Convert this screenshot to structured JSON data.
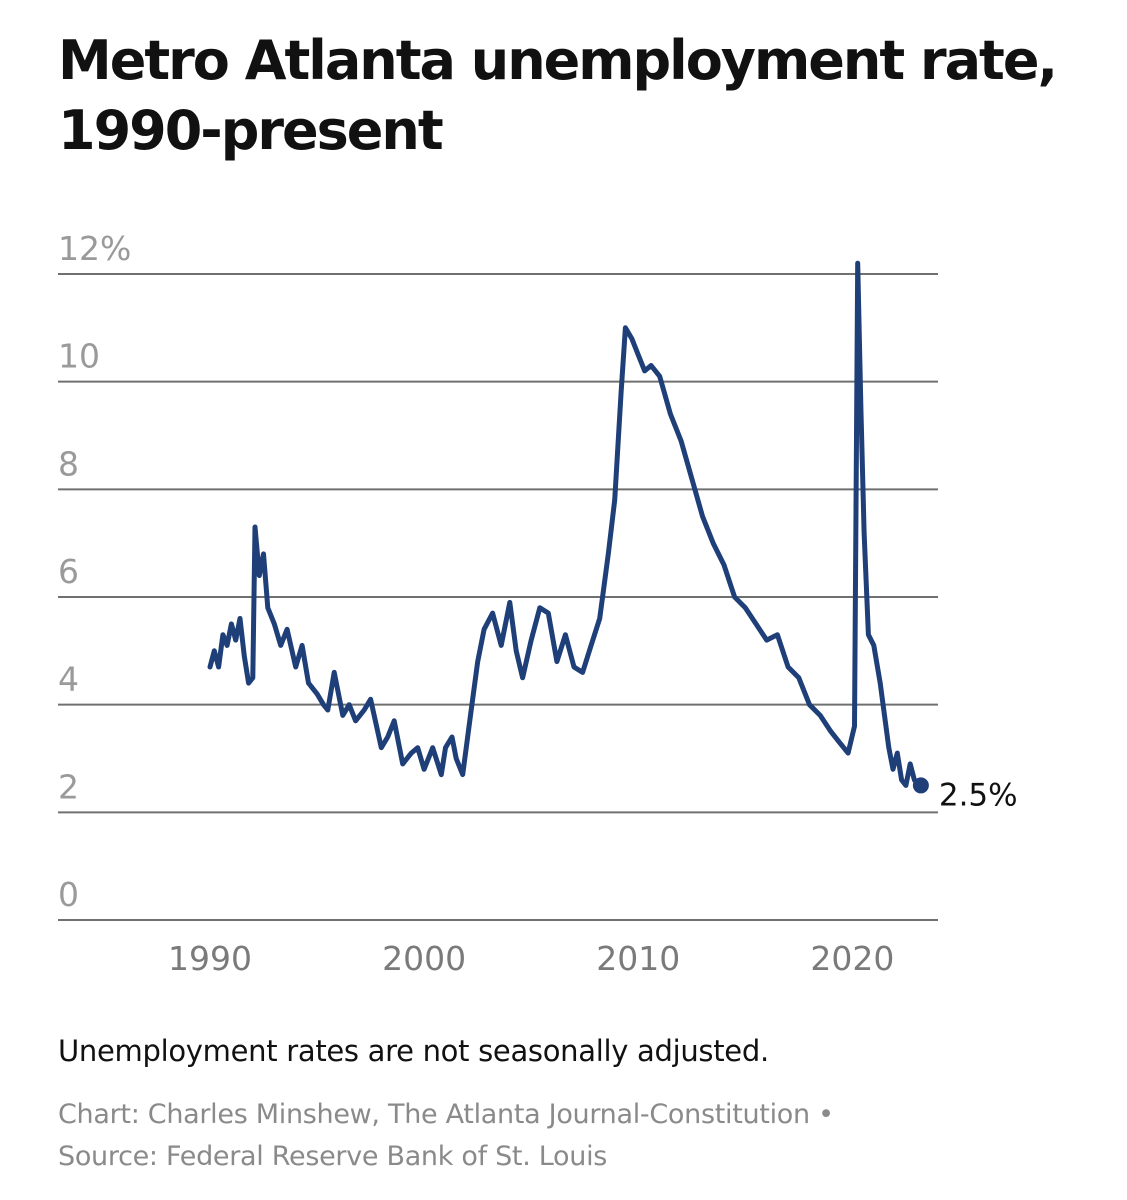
{
  "title": "Metro Atlanta unemployment rate, 1990-present",
  "note": "Unemployment rates are not seasonally adjusted.",
  "credit_line1": "Chart: Charles Minshew, The Atlanta Journal-Constitution •",
  "credit_line2": "Source: Federal Reserve Bank of St. Louis",
  "colors": {
    "line": "#1f3f78",
    "grid": "#707070",
    "ticks": "#9a9a9a"
  },
  "chart_data": {
    "type": "line",
    "title": "Metro Atlanta unemployment rate, 1990-present",
    "xlabel": "",
    "ylabel": "",
    "xlim": [
      1982.9,
      2024.0
    ],
    "ylim": [
      0,
      12
    ],
    "grid": true,
    "y_ticks": [
      {
        "value": 0,
        "label": "0"
      },
      {
        "value": 2,
        "label": "2"
      },
      {
        "value": 4,
        "label": "4"
      },
      {
        "value": 6,
        "label": "6"
      },
      {
        "value": 8,
        "label": "8"
      },
      {
        "value": 10,
        "label": "10"
      },
      {
        "value": 12,
        "label": "12%"
      }
    ],
    "x_ticks": [
      {
        "value": 1990,
        "label": "1990"
      },
      {
        "value": 2000,
        "label": "2000"
      },
      {
        "value": 2010,
        "label": "2010"
      },
      {
        "value": 2020,
        "label": "2020"
      }
    ],
    "end_label": "2.5%",
    "series": [
      {
        "x": [
          1990.0,
          1990.2,
          1990.4,
          1990.6,
          1990.8,
          1991.0,
          1991.2,
          1991.4,
          1991.6,
          1991.8,
          1992.0,
          1992.1,
          1992.3,
          1992.5,
          1992.7,
          1993.0,
          1993.3,
          1993.6,
          1994.0,
          1994.3,
          1994.6,
          1995.0,
          1995.3,
          1995.5,
          1995.8,
          1996.2,
          1996.5,
          1996.8,
          1997.2,
          1997.5,
          1998.0,
          1998.3,
          1998.6,
          1999.0,
          1999.4,
          1999.7,
          2000.0,
          2000.4,
          2000.8,
          2001.0,
          2001.3,
          2001.5,
          2001.8,
          2002.2,
          2002.5,
          2002.8,
          2003.2,
          2003.6,
          2004.0,
          2004.3,
          2004.6,
          2005.0,
          2005.4,
          2005.8,
          2006.2,
          2006.6,
          2007.0,
          2007.4,
          2007.8,
          2008.2,
          2008.6,
          2008.9,
          2009.2,
          2009.4,
          2009.7,
          2010.0,
          2010.3,
          2010.6,
          2011.0,
          2011.5,
          2012.0,
          2012.5,
          2013.0,
          2013.5,
          2014.0,
          2014.5,
          2015.0,
          2015.5,
          2016.0,
          2016.5,
          2017.0,
          2017.5,
          2018.0,
          2018.5,
          2019.0,
          2019.4,
          2019.8,
          2020.1,
          2020.25,
          2020.4,
          2020.55,
          2020.75,
          2021.0,
          2021.3,
          2021.5,
          2021.7,
          2021.9,
          2022.1,
          2022.3,
          2022.5,
          2022.7,
          2022.9,
          2023.1,
          2023.2
        ],
        "y": [
          4.7,
          5.0,
          4.7,
          5.3,
          5.1,
          5.5,
          5.2,
          5.6,
          4.9,
          4.4,
          4.5,
          7.3,
          6.4,
          6.8,
          5.8,
          5.5,
          5.1,
          5.4,
          4.7,
          5.1,
          4.4,
          4.2,
          4.0,
          3.9,
          4.6,
          3.8,
          4.0,
          3.7,
          3.9,
          4.1,
          3.2,
          3.4,
          3.7,
          2.9,
          3.1,
          3.2,
          2.8,
          3.2,
          2.7,
          3.2,
          3.4,
          3.0,
          2.7,
          3.9,
          4.8,
          5.4,
          5.7,
          5.1,
          5.9,
          5.0,
          4.5,
          5.2,
          5.8,
          5.7,
          4.8,
          5.3,
          4.7,
          4.6,
          5.1,
          5.6,
          6.8,
          7.8,
          9.8,
          11.0,
          10.8,
          10.5,
          10.2,
          10.3,
          10.1,
          9.4,
          8.9,
          8.2,
          7.5,
          7.0,
          6.6,
          6.0,
          5.8,
          5.5,
          5.2,
          5.3,
          4.7,
          4.5,
          4.0,
          3.8,
          3.5,
          3.3,
          3.1,
          3.6,
          12.2,
          9.5,
          7.2,
          5.3,
          5.1,
          4.4,
          3.8,
          3.2,
          2.8,
          3.1,
          2.6,
          2.5,
          2.9,
          2.6,
          2.5,
          2.5
        ]
      }
    ]
  }
}
